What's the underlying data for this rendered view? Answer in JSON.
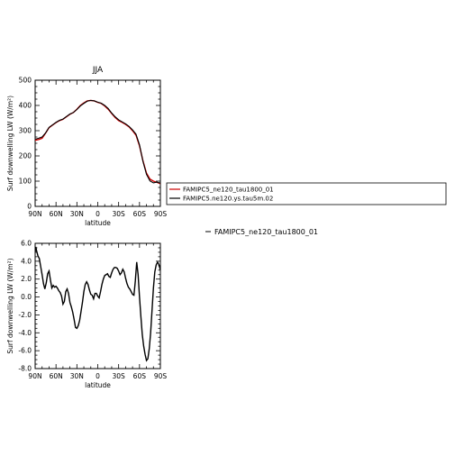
{
  "chart_data": [
    {
      "type": "line",
      "title": "JJA",
      "xlabel": "latitude",
      "ylabel": "Surf downwelling LW (W/m²)",
      "xlim": [
        90,
        -90
      ],
      "ylim": [
        0,
        500
      ],
      "xticks": [
        90,
        60,
        30,
        0,
        -30,
        -60,
        -90
      ],
      "xtick_labels": [
        "90N",
        "60N",
        "30N",
        "0",
        "30S",
        "60S",
        "90S"
      ],
      "yticks": [
        0,
        100,
        200,
        300,
        400,
        500
      ],
      "ytick_labels": [
        "0",
        "100",
        "200",
        "300",
        "400",
        "500"
      ],
      "legend": {
        "placement": "right",
        "entries": [
          "FAMIPC5_ne120_tau1800_01",
          "FAMIPC5.ne120.ys.tau5m.02"
        ]
      },
      "series": [
        {
          "name": "FAMIPC5_ne120_tau1800_01",
          "color": "#cc0000",
          "x": [
            90,
            85,
            80,
            75,
            70,
            65,
            60,
            55,
            50,
            45,
            40,
            35,
            30,
            25,
            20,
            15,
            10,
            5,
            0,
            -5,
            -10,
            -15,
            -20,
            -25,
            -30,
            -35,
            -40,
            -45,
            -50,
            -55,
            -60,
            -65,
            -70,
            -75,
            -80,
            -85,
            -90
          ],
          "y": [
            262,
            265,
            270,
            290,
            312,
            322,
            332,
            340,
            345,
            355,
            365,
            372,
            385,
            400,
            410,
            418,
            420,
            418,
            412,
            408,
            398,
            385,
            368,
            352,
            340,
            333,
            325,
            315,
            300,
            282,
            240,
            180,
            132,
            108,
            100,
            95,
            90
          ]
        },
        {
          "name": "FAMIPC5.ne120.ys.tau5m.02",
          "color": "#000000",
          "x": [
            90,
            85,
            80,
            75,
            70,
            65,
            60,
            55,
            50,
            45,
            40,
            35,
            30,
            25,
            20,
            15,
            10,
            5,
            0,
            -5,
            -10,
            -15,
            -20,
            -25,
            -30,
            -35,
            -40,
            -45,
            -50,
            -55,
            -60,
            -65,
            -70,
            -75,
            -80,
            -85,
            -90
          ],
          "y": [
            266,
            270,
            275,
            291,
            313,
            323,
            333,
            341,
            346,
            356,
            366,
            372,
            384,
            398,
            408,
            417,
            420,
            418,
            413,
            409,
            400,
            388,
            370,
            355,
            343,
            335,
            327,
            317,
            303,
            286,
            244,
            178,
            127,
            101,
            93,
            96,
            92
          ]
        }
      ]
    },
    {
      "type": "line",
      "title": "",
      "xlabel": "latitude",
      "ylabel": "Surf downwelling LW (W/m²)",
      "xlim": [
        90,
        -90
      ],
      "ylim": [
        -8,
        6
      ],
      "xticks": [
        90,
        60,
        30,
        0,
        -30,
        -60,
        -90
      ],
      "xtick_labels": [
        "90N",
        "60N",
        "30N",
        "0",
        "30S",
        "60S",
        "90S"
      ],
      "yticks": [
        -8,
        -6,
        -4,
        -2,
        0,
        2,
        4,
        6
      ],
      "ytick_labels": [
        "-8.0",
        "-6.0",
        "-4.0",
        "-2.0",
        "0.0",
        "2.0",
        "4.0",
        "6.0"
      ],
      "legend": {
        "placement": "right",
        "entries": [
          "FAMIPC5_ne120_tau1800_01"
        ]
      },
      "series": [
        {
          "name": "FAMIPC5_ne120_tau1800_01",
          "color": "#000000",
          "x": [
            90,
            89,
            88,
            86,
            84,
            82,
            80,
            78,
            76,
            74,
            72,
            70,
            68,
            66,
            64,
            62,
            60,
            58,
            56,
            54,
            52,
            50,
            48,
            46,
            44,
            42,
            40,
            38,
            36,
            34,
            32,
            30,
            28,
            26,
            24,
            22,
            20,
            18,
            16,
            14,
            12,
            10,
            8,
            6,
            4,
            2,
            0,
            -2,
            -4,
            -6,
            -8,
            -10,
            -12,
            -14,
            -16,
            -18,
            -20,
            -22,
            -24,
            -26,
            -28,
            -30,
            -32,
            -34,
            -36,
            -38,
            -40,
            -42,
            -44,
            -46,
            -48,
            -50,
            -52,
            -54,
            -56,
            -58,
            -60,
            -62,
            -64,
            -66,
            -68,
            -70,
            -72,
            -74,
            -76,
            -78,
            -80,
            -82,
            -84,
            -86,
            -88,
            -90
          ],
          "y": [
            5.0,
            5.6,
            5.2,
            4.6,
            4.3,
            3.4,
            2.5,
            1.5,
            0.9,
            1.6,
            2.6,
            2.9,
            1.9,
            1.0,
            1.3,
            1.1,
            1.2,
            1.0,
            0.7,
            0.5,
            0.1,
            -0.8,
            -0.5,
            0.6,
            0.9,
            0.4,
            -0.6,
            -1.1,
            -1.7,
            -2.5,
            -3.4,
            -3.5,
            -3.2,
            -2.6,
            -1.6,
            -0.6,
            0.6,
            1.4,
            1.7,
            1.4,
            0.8,
            0.3,
            0.2,
            -0.2,
            0.4,
            0.4,
            0.1,
            -0.1,
            0.6,
            1.4,
            2.0,
            2.4,
            2.5,
            2.6,
            2.3,
            2.2,
            2.7,
            3.1,
            3.3,
            3.3,
            3.2,
            2.9,
            2.5,
            2.7,
            3.1,
            2.8,
            2.1,
            1.5,
            1.1,
            0.9,
            0.6,
            0.3,
            0.2,
            1.8,
            3.9,
            2.5,
            0.0,
            -2.2,
            -4.2,
            -5.5,
            -6.4,
            -7.1,
            -6.9,
            -5.8,
            -4.0,
            -1.5,
            1.0,
            2.8,
            3.6,
            3.9,
            3.6,
            3.0
          ]
        }
      ]
    }
  ]
}
